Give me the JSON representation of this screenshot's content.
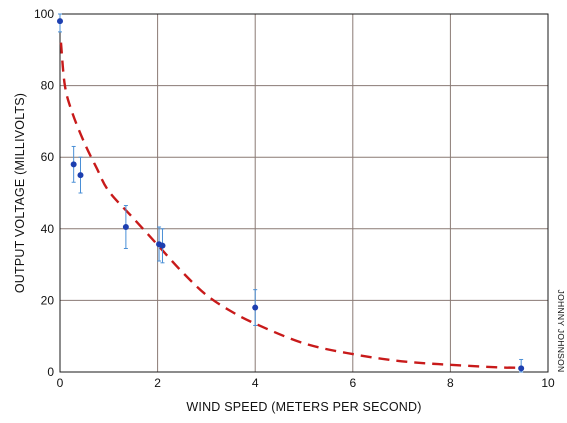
{
  "chart_data": {
    "type": "scatter",
    "xlabel": "WIND SPEED (METERS PER SECOND)",
    "ylabel": "OUTPUT VOLTAGE (MILLIVOLTS)",
    "xlim": [
      0,
      10
    ],
    "ylim": [
      0,
      100
    ],
    "x_ticks": [
      "0",
      "2",
      "4",
      "6",
      "8",
      "10"
    ],
    "y_ticks": [
      "0",
      "20",
      "40",
      "60",
      "80",
      "100"
    ],
    "grid": true,
    "credit": "JOHNNY JOHNSON",
    "points": [
      {
        "x": 0.0,
        "y": 98,
        "err_low": 95,
        "err_high": 100
      },
      {
        "x": 0.28,
        "y": 58,
        "err_low": 53,
        "err_high": 63
      },
      {
        "x": 0.42,
        "y": 55,
        "err_low": 50,
        "err_high": 60
      },
      {
        "x": 1.35,
        "y": 40.5,
        "err_low": 34.5,
        "err_high": 46.5
      },
      {
        "x": 2.03,
        "y": 35.7,
        "err_low": 31,
        "err_high": 40.5
      },
      {
        "x": 2.1,
        "y": 35.3,
        "err_low": 30.5,
        "err_high": 40
      },
      {
        "x": 4.0,
        "y": 18,
        "err_low": 13,
        "err_high": 23
      },
      {
        "x": 9.45,
        "y": 1,
        "err_low": 0,
        "err_high": 3.5
      }
    ],
    "fit_curve": {
      "style": "dashed",
      "color": "#c81a1a",
      "x": [
        0.02,
        0.1,
        0.25,
        0.5,
        0.75,
        1.0,
        1.5,
        2.0,
        2.5,
        3.0,
        3.5,
        4.0,
        5.0,
        6.0,
        7.0,
        8.0,
        9.0,
        9.4
      ],
      "y": [
        92,
        80,
        72.5,
        64,
        57,
        50.5,
        43,
        35.5,
        28,
        21.5,
        17,
        13.5,
        8,
        5,
        3,
        2,
        1.3,
        1.2
      ]
    },
    "colors": {
      "points": "#1d3fb0",
      "error_bars": "#4a8fd6",
      "grid": "#8a7a74"
    }
  }
}
